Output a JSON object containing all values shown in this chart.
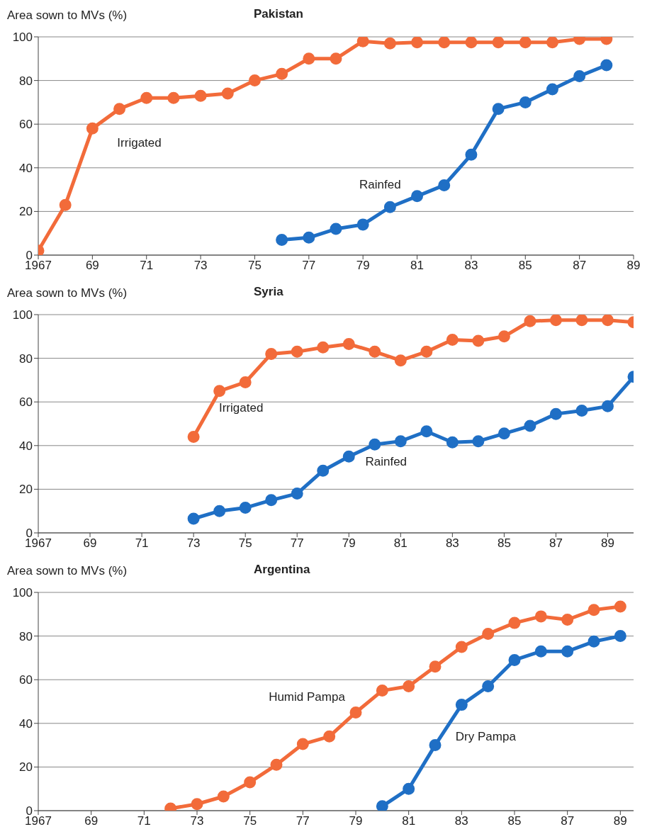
{
  "chart_data": [
    {
      "type": "line",
      "title": "Pakistan",
      "ylabel": "Area sown to MVs (%)",
      "xlim": [
        1967,
        1989
      ],
      "ylim": [
        0,
        100
      ],
      "xticks": [
        {
          "value": 1967,
          "label": "1967"
        },
        {
          "value": 1969,
          "label": "69"
        },
        {
          "value": 1971,
          "label": "71"
        },
        {
          "value": 1973,
          "label": "73"
        },
        {
          "value": 1975,
          "label": "75"
        },
        {
          "value": 1977,
          "label": "77"
        },
        {
          "value": 1979,
          "label": "79"
        },
        {
          "value": 1981,
          "label": "81"
        },
        {
          "value": 1983,
          "label": "83"
        },
        {
          "value": 1985,
          "label": "85"
        },
        {
          "value": 1987,
          "label": "87"
        },
        {
          "value": 1989,
          "label": "89"
        }
      ],
      "yticks": [
        0,
        20,
        40,
        60,
        80,
        100
      ],
      "grid": "y",
      "legend": false,
      "marker": "circle",
      "line_style": "solid",
      "series": [
        {
          "name": "Irrigated",
          "color": "#f26b3a",
          "x": [
            1967,
            1968,
            1969,
            1970,
            1971,
            1972,
            1973,
            1974,
            1975,
            1976,
            1977,
            1978,
            1979,
            1980,
            1981,
            1982,
            1983,
            1984,
            1985,
            1986,
            1987,
            1988
          ],
          "values": [
            2,
            23,
            58,
            67,
            72,
            72,
            73,
            74,
            80,
            83,
            90,
            90,
            98,
            97,
            97.5,
            97.5,
            97.5,
            97.5,
            97.5,
            97.5,
            99,
            99
          ]
        },
        {
          "name": "Rainfed",
          "color": "#1f6fc5",
          "x": [
            1976,
            1977,
            1978,
            1979,
            1980,
            1981,
            1982,
            1983,
            1984,
            1985,
            1986,
            1987,
            1988
          ],
          "values": [
            7,
            8,
            12,
            14,
            22,
            27,
            32,
            46,
            67,
            70,
            76,
            82,
            87
          ]
        }
      ]
    },
    {
      "type": "line",
      "title": "Syria",
      "ylabel": "Area sown to MVs (%)",
      "xlim": [
        1967,
        1990
      ],
      "ylim": [
        0,
        100
      ],
      "xticks": [
        {
          "value": 1967,
          "label": "1967"
        },
        {
          "value": 1969,
          "label": "69"
        },
        {
          "value": 1971,
          "label": "71"
        },
        {
          "value": 1973,
          "label": "73"
        },
        {
          "value": 1975,
          "label": "75"
        },
        {
          "value": 1977,
          "label": "77"
        },
        {
          "value": 1979,
          "label": "79"
        },
        {
          "value": 1981,
          "label": "81"
        },
        {
          "value": 1983,
          "label": "83"
        },
        {
          "value": 1985,
          "label": "85"
        },
        {
          "value": 1987,
          "label": "87"
        },
        {
          "value": 1989,
          "label": "89"
        }
      ],
      "yticks": [
        0,
        20,
        40,
        60,
        80,
        100
      ],
      "grid": "y",
      "legend": false,
      "marker": "circle",
      "line_style": "solid",
      "series": [
        {
          "name": "Irrigated",
          "color": "#f26b3a",
          "x": [
            1973,
            1974,
            1975,
            1976,
            1977,
            1978,
            1979,
            1980,
            1981,
            1982,
            1983,
            1984,
            1985,
            1986,
            1987,
            1988,
            1989,
            1990
          ],
          "values": [
            44,
            65,
            69,
            82,
            83,
            85,
            86.5,
            83,
            79,
            83,
            88.5,
            88,
            90,
            97,
            97.5,
            97.5,
            97.5,
            96.5
          ]
        },
        {
          "name": "Rainfed",
          "color": "#1f6fc5",
          "x": [
            1973,
            1974,
            1975,
            1976,
            1977,
            1978,
            1979,
            1980,
            1981,
            1982,
            1983,
            1984,
            1985,
            1986,
            1987,
            1988,
            1989,
            1990
          ],
          "values": [
            6.5,
            10,
            11.5,
            15,
            18,
            28.5,
            35,
            40.5,
            42,
            46.5,
            41.5,
            42,
            45.5,
            49,
            54.5,
            56,
            58,
            71.5
          ]
        }
      ]
    },
    {
      "type": "line",
      "title": "Argentina",
      "ylabel": "Area sown to MVs (%)",
      "xlim": [
        1967,
        1989.5
      ],
      "ylim": [
        0,
        100
      ],
      "xticks": [
        {
          "value": 1967,
          "label": "1967"
        },
        {
          "value": 1969,
          "label": "69"
        },
        {
          "value": 1971,
          "label": "71"
        },
        {
          "value": 1973,
          "label": "73"
        },
        {
          "value": 1975,
          "label": "75"
        },
        {
          "value": 1977,
          "label": "77"
        },
        {
          "value": 1979,
          "label": "79"
        },
        {
          "value": 1981,
          "label": "81"
        },
        {
          "value": 1983,
          "label": "83"
        },
        {
          "value": 1985,
          "label": "85"
        },
        {
          "value": 1987,
          "label": "87"
        },
        {
          "value": 1989,
          "label": "89"
        }
      ],
      "yticks": [
        0,
        20,
        40,
        60,
        80,
        100
      ],
      "grid": "y",
      "legend": false,
      "marker": "circle",
      "line_style": "solid",
      "series": [
        {
          "name": "Humid Pampa",
          "color": "#f26b3a",
          "x": [
            1972,
            1973,
            1974,
            1975,
            1976,
            1977,
            1978,
            1979,
            1980,
            1981,
            1982,
            1983,
            1984,
            1985,
            1986,
            1987,
            1988,
            1989
          ],
          "values": [
            1,
            3,
            6.5,
            13,
            21,
            30.5,
            34,
            45,
            55,
            57,
            66,
            75,
            81,
            86,
            89,
            87.5,
            92,
            93.5
          ]
        },
        {
          "name": "Dry Pampa",
          "color": "#1f6fc5",
          "x": [
            1980,
            1981,
            1982,
            1983,
            1984,
            1985,
            1986,
            1987,
            1988,
            1989
          ],
          "values": [
            2,
            10,
            30,
            48.5,
            57,
            69,
            73,
            73,
            77.5,
            80
          ]
        }
      ]
    }
  ]
}
